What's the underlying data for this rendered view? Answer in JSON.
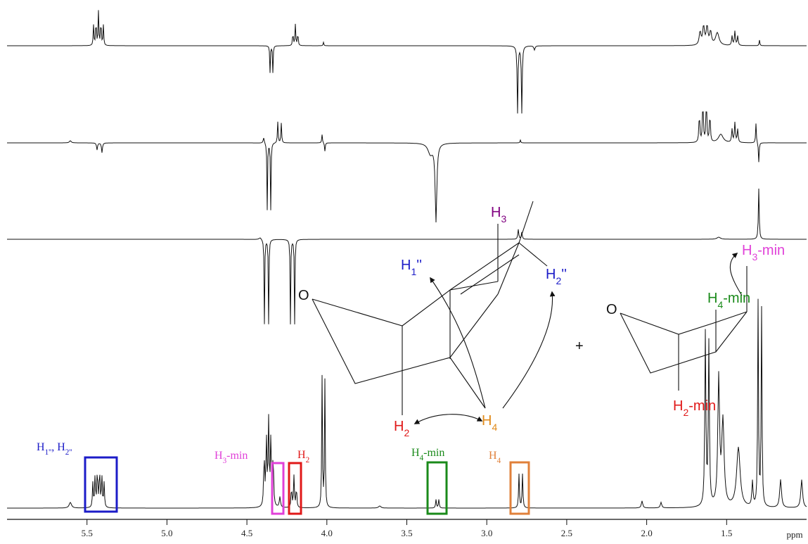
{
  "chart_data": {
    "type": "nmr",
    "x_label": "ppm",
    "xlim": [
      6.0,
      1.0
    ],
    "xticks": [
      5.5,
      {
        "value": 5,
        "label": "5.0"
      },
      4.5,
      {
        "value": 4,
        "label": "4.0"
      },
      3.5,
      {
        "value": 3,
        "label": "3.0"
      },
      2.5,
      {
        "value": 2,
        "label": "2.0"
      },
      1.5
    ],
    "peak_labels": [
      {
        "color": "#1c1cc8",
        "segments": [
          {
            "text": "H"
          },
          {
            "sub": "1''"
          },
          {
            "text": ", H"
          },
          {
            "sub": "2''"
          }
        ]
      },
      {
        "color": "#e040d8",
        "segments": [
          {
            "text": "H"
          },
          {
            "sub": "3"
          },
          {
            "text": "-min"
          }
        ]
      },
      {
        "color": "#e01818",
        "segments": [
          {
            "text": "H"
          },
          {
            "sub": "2"
          }
        ]
      },
      {
        "color": "#1a8a1a",
        "segments": [
          {
            "text": "H"
          },
          {
            "sub": "4"
          },
          {
            "text": "-min"
          }
        ]
      },
      {
        "color": "#e0803a",
        "segments": [
          {
            "text": "H"
          },
          {
            "sub": "4"
          }
        ]
      }
    ]
  },
  "diagram": {
    "labels": [
      {
        "color": "#800080",
        "segments": [
          {
            "text": "H"
          },
          {
            "sub": "3"
          }
        ]
      },
      {
        "color": "#1c1cc8",
        "segments": [
          {
            "text": "H"
          },
          {
            "sub": "1"
          },
          {
            "text": "''"
          }
        ]
      },
      {
        "color": "#1c1cc8",
        "segments": [
          {
            "text": "H"
          },
          {
            "sub": "2"
          },
          {
            "text": "''"
          }
        ]
      },
      {
        "color": "#111111",
        "segments": [
          {
            "text": "O"
          }
        ]
      },
      {
        "color": "#e01818",
        "segments": [
          {
            "text": "H"
          },
          {
            "sub": "2"
          }
        ]
      },
      {
        "color": "#e08a1a",
        "segments": [
          {
            "text": "H"
          },
          {
            "sub": "4"
          }
        ]
      },
      {
        "color": "#111111",
        "segments": [
          {
            "text": "+"
          }
        ]
      },
      {
        "color": "#111111",
        "segments": [
          {
            "text": "O"
          }
        ]
      },
      {
        "color": "#e040d8",
        "segments": [
          {
            "text": "H"
          },
          {
            "sub": "3"
          },
          {
            "text": "-min"
          }
        ]
      },
      {
        "color": "#1a8a1a",
        "segments": [
          {
            "text": "H"
          },
          {
            "sub": "4"
          },
          {
            "text": "-min"
          }
        ]
      },
      {
        "color": "#e01818",
        "segments": [
          {
            "text": "H"
          },
          {
            "sub": "2"
          },
          {
            "text": "-min"
          }
        ]
      }
    ]
  }
}
